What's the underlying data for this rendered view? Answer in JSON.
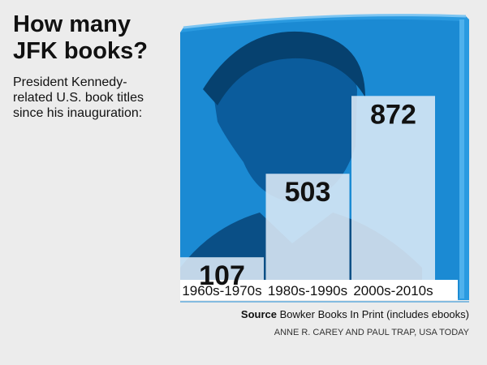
{
  "chart_data": {
    "type": "bar",
    "title": "How many JFK books?",
    "subtitle": "President Kennedy-related U.S. book titles since his inauguration:",
    "categories": [
      "1960s-1970s",
      "1980s-1990s",
      "2000s-2010s"
    ],
    "values": [
      107,
      503,
      872
    ],
    "color": "#dce9f6",
    "source_label": "Source",
    "source": "Bowker Books In Print (includes ebooks)",
    "credit": "ANNE R. CAREY AND PAUL TRAP, USA TODAY"
  }
}
